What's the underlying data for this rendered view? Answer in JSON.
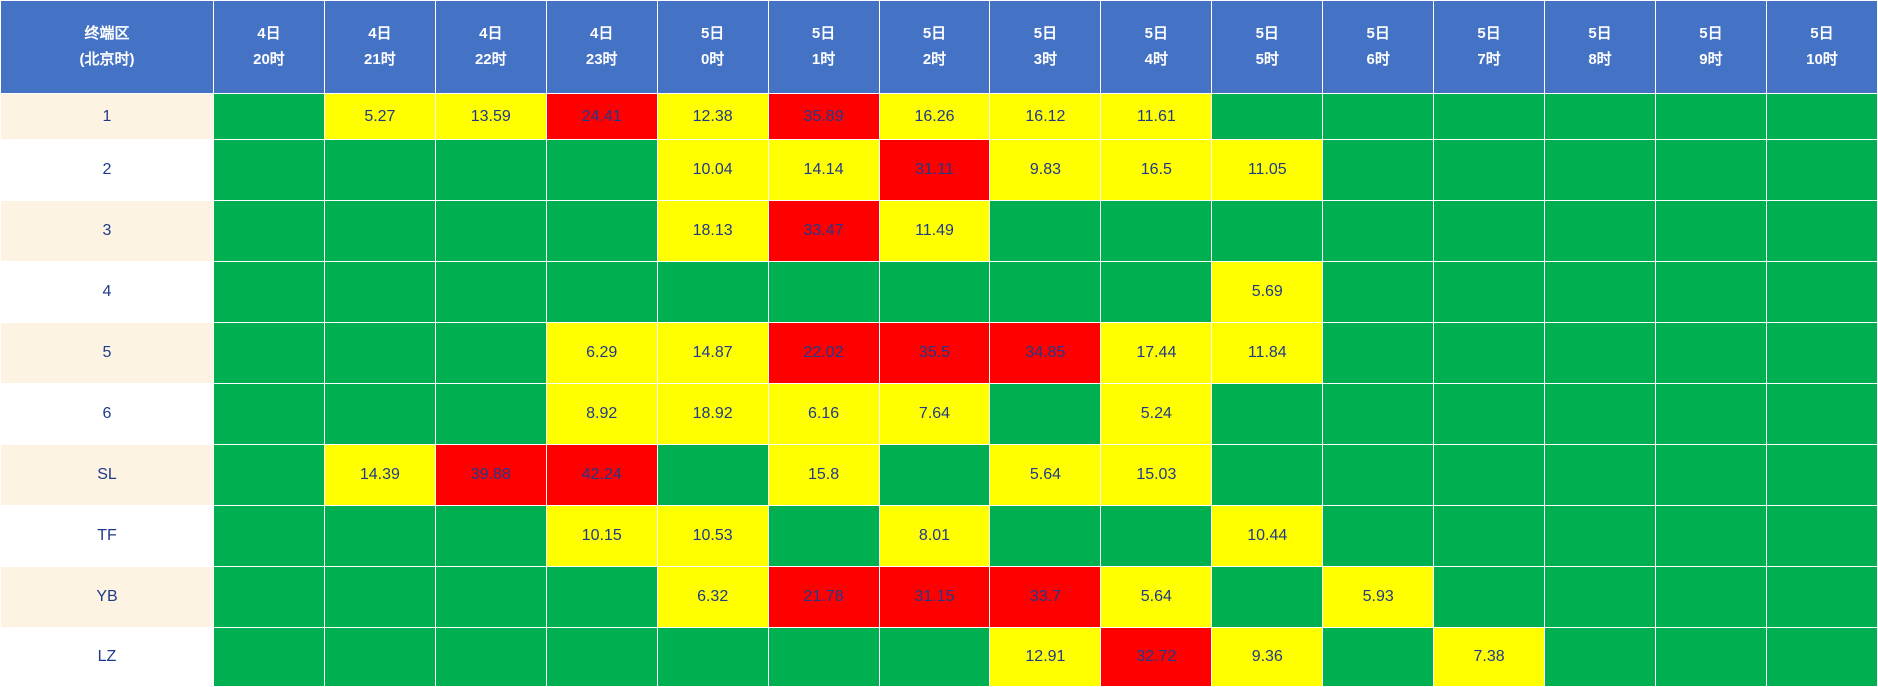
{
  "colors": {
    "header": "#4472c4",
    "green": "#00b050",
    "yellow": "#ffff00",
    "red": "#ff0000",
    "label_tint": "#fdf3e3"
  },
  "header": {
    "corner": [
      "终端区",
      "(北京时)"
    ],
    "columns": [
      [
        "4日",
        "20时"
      ],
      [
        "4日",
        "21时"
      ],
      [
        "4日",
        "22时"
      ],
      [
        "4日",
        "23时"
      ],
      [
        "5日",
        "0时"
      ],
      [
        "5日",
        "1时"
      ],
      [
        "5日",
        "2时"
      ],
      [
        "5日",
        "3时"
      ],
      [
        "5日",
        "4时"
      ],
      [
        "5日",
        "5时"
      ],
      [
        "5日",
        "6时"
      ],
      [
        "5日",
        "7时"
      ],
      [
        "5日",
        "8时"
      ],
      [
        "5日",
        "9时"
      ],
      [
        "5日",
        "10时"
      ]
    ]
  },
  "rows": [
    {
      "label": "1",
      "cells": [
        {
          "v": "",
          "c": "green"
        },
        {
          "v": "5.27",
          "c": "yellow"
        },
        {
          "v": "13.59",
          "c": "yellow"
        },
        {
          "v": "24.41",
          "c": "red"
        },
        {
          "v": "12.38",
          "c": "yellow"
        },
        {
          "v": "35.89",
          "c": "red"
        },
        {
          "v": "16.26",
          "c": "yellow"
        },
        {
          "v": "16.12",
          "c": "yellow"
        },
        {
          "v": "11.61",
          "c": "yellow"
        },
        {
          "v": "",
          "c": "green"
        },
        {
          "v": "",
          "c": "green"
        },
        {
          "v": "",
          "c": "green"
        },
        {
          "v": "",
          "c": "green"
        },
        {
          "v": "",
          "c": "green"
        },
        {
          "v": "",
          "c": "green"
        }
      ]
    },
    {
      "label": "2",
      "cells": [
        {
          "v": "",
          "c": "green"
        },
        {
          "v": "",
          "c": "green"
        },
        {
          "v": "",
          "c": "green"
        },
        {
          "v": "",
          "c": "green"
        },
        {
          "v": "10.04",
          "c": "yellow"
        },
        {
          "v": "14.14",
          "c": "yellow"
        },
        {
          "v": "31.11",
          "c": "red"
        },
        {
          "v": "9.83",
          "c": "yellow"
        },
        {
          "v": "16.5",
          "c": "yellow"
        },
        {
          "v": "11.05",
          "c": "yellow"
        },
        {
          "v": "",
          "c": "green"
        },
        {
          "v": "",
          "c": "green"
        },
        {
          "v": "",
          "c": "green"
        },
        {
          "v": "",
          "c": "green"
        },
        {
          "v": "",
          "c": "green"
        }
      ]
    },
    {
      "label": "3",
      "cells": [
        {
          "v": "",
          "c": "green"
        },
        {
          "v": "",
          "c": "green"
        },
        {
          "v": "",
          "c": "green"
        },
        {
          "v": "",
          "c": "green"
        },
        {
          "v": "18.13",
          "c": "yellow"
        },
        {
          "v": "33.47",
          "c": "red"
        },
        {
          "v": "11.49",
          "c": "yellow"
        },
        {
          "v": "",
          "c": "green"
        },
        {
          "v": "",
          "c": "green"
        },
        {
          "v": "",
          "c": "green"
        },
        {
          "v": "",
          "c": "green"
        },
        {
          "v": "",
          "c": "green"
        },
        {
          "v": "",
          "c": "green"
        },
        {
          "v": "",
          "c": "green"
        },
        {
          "v": "",
          "c": "green"
        }
      ]
    },
    {
      "label": "4",
      "cells": [
        {
          "v": "",
          "c": "green"
        },
        {
          "v": "",
          "c": "green"
        },
        {
          "v": "",
          "c": "green"
        },
        {
          "v": "",
          "c": "green"
        },
        {
          "v": "",
          "c": "green"
        },
        {
          "v": "",
          "c": "green"
        },
        {
          "v": "",
          "c": "green"
        },
        {
          "v": "",
          "c": "green"
        },
        {
          "v": "",
          "c": "green"
        },
        {
          "v": "5.69",
          "c": "yellow"
        },
        {
          "v": "",
          "c": "green"
        },
        {
          "v": "",
          "c": "green"
        },
        {
          "v": "",
          "c": "green"
        },
        {
          "v": "",
          "c": "green"
        },
        {
          "v": "",
          "c": "green"
        }
      ]
    },
    {
      "label": "5",
      "cells": [
        {
          "v": "",
          "c": "green"
        },
        {
          "v": "",
          "c": "green"
        },
        {
          "v": "",
          "c": "green"
        },
        {
          "v": "6.29",
          "c": "yellow"
        },
        {
          "v": "14.87",
          "c": "yellow"
        },
        {
          "v": "22.02",
          "c": "red"
        },
        {
          "v": "35.5",
          "c": "red"
        },
        {
          "v": "34.85",
          "c": "red"
        },
        {
          "v": "17.44",
          "c": "yellow"
        },
        {
          "v": "11.84",
          "c": "yellow"
        },
        {
          "v": "",
          "c": "green"
        },
        {
          "v": "",
          "c": "green"
        },
        {
          "v": "",
          "c": "green"
        },
        {
          "v": "",
          "c": "green"
        },
        {
          "v": "",
          "c": "green"
        }
      ]
    },
    {
      "label": "6",
      "cells": [
        {
          "v": "",
          "c": "green"
        },
        {
          "v": "",
          "c": "green"
        },
        {
          "v": "",
          "c": "green"
        },
        {
          "v": "8.92",
          "c": "yellow"
        },
        {
          "v": "18.92",
          "c": "yellow"
        },
        {
          "v": "6.16",
          "c": "yellow"
        },
        {
          "v": "7.64",
          "c": "yellow"
        },
        {
          "v": "",
          "c": "green"
        },
        {
          "v": "5.24",
          "c": "yellow"
        },
        {
          "v": "",
          "c": "green"
        },
        {
          "v": "",
          "c": "green"
        },
        {
          "v": "",
          "c": "green"
        },
        {
          "v": "",
          "c": "green"
        },
        {
          "v": "",
          "c": "green"
        },
        {
          "v": "",
          "c": "green"
        }
      ]
    },
    {
      "label": "SL",
      "cells": [
        {
          "v": "",
          "c": "green"
        },
        {
          "v": "14.39",
          "c": "yellow"
        },
        {
          "v": "39.88",
          "c": "red"
        },
        {
          "v": "42.24",
          "c": "red"
        },
        {
          "v": "",
          "c": "green"
        },
        {
          "v": "15.8",
          "c": "yellow"
        },
        {
          "v": "",
          "c": "green"
        },
        {
          "v": "5.64",
          "c": "yellow"
        },
        {
          "v": "15.03",
          "c": "yellow"
        },
        {
          "v": "",
          "c": "green"
        },
        {
          "v": "",
          "c": "green"
        },
        {
          "v": "",
          "c": "green"
        },
        {
          "v": "",
          "c": "green"
        },
        {
          "v": "",
          "c": "green"
        },
        {
          "v": "",
          "c": "green"
        }
      ]
    },
    {
      "label": "TF",
      "cells": [
        {
          "v": "",
          "c": "green"
        },
        {
          "v": "",
          "c": "green"
        },
        {
          "v": "",
          "c": "green"
        },
        {
          "v": "10.15",
          "c": "yellow"
        },
        {
          "v": "10.53",
          "c": "yellow"
        },
        {
          "v": "",
          "c": "green"
        },
        {
          "v": "8.01",
          "c": "yellow"
        },
        {
          "v": "",
          "c": "green"
        },
        {
          "v": "",
          "c": "green"
        },
        {
          "v": "10.44",
          "c": "yellow"
        },
        {
          "v": "",
          "c": "green"
        },
        {
          "v": "",
          "c": "green"
        },
        {
          "v": "",
          "c": "green"
        },
        {
          "v": "",
          "c": "green"
        },
        {
          "v": "",
          "c": "green"
        }
      ]
    },
    {
      "label": "YB",
      "cells": [
        {
          "v": "",
          "c": "green"
        },
        {
          "v": "",
          "c": "green"
        },
        {
          "v": "",
          "c": "green"
        },
        {
          "v": "",
          "c": "green"
        },
        {
          "v": "6.32",
          "c": "yellow"
        },
        {
          "v": "21.78",
          "c": "red"
        },
        {
          "v": "31.15",
          "c": "red"
        },
        {
          "v": "33.7",
          "c": "red"
        },
        {
          "v": "5.64",
          "c": "yellow"
        },
        {
          "v": "",
          "c": "green"
        },
        {
          "v": "5.93",
          "c": "yellow"
        },
        {
          "v": "",
          "c": "green"
        },
        {
          "v": "",
          "c": "green"
        },
        {
          "v": "",
          "c": "green"
        },
        {
          "v": "",
          "c": "green"
        }
      ]
    },
    {
      "label": "LZ",
      "cells": [
        {
          "v": "",
          "c": "green"
        },
        {
          "v": "",
          "c": "green"
        },
        {
          "v": "",
          "c": "green"
        },
        {
          "v": "",
          "c": "green"
        },
        {
          "v": "",
          "c": "green"
        },
        {
          "v": "",
          "c": "green"
        },
        {
          "v": "",
          "c": "green"
        },
        {
          "v": "12.91",
          "c": "yellow"
        },
        {
          "v": "32.72",
          "c": "red"
        },
        {
          "v": "9.36",
          "c": "yellow"
        },
        {
          "v": "",
          "c": "green"
        },
        {
          "v": "7.38",
          "c": "yellow"
        },
        {
          "v": "",
          "c": "green"
        },
        {
          "v": "",
          "c": "green"
        },
        {
          "v": "",
          "c": "green"
        }
      ]
    }
  ]
}
